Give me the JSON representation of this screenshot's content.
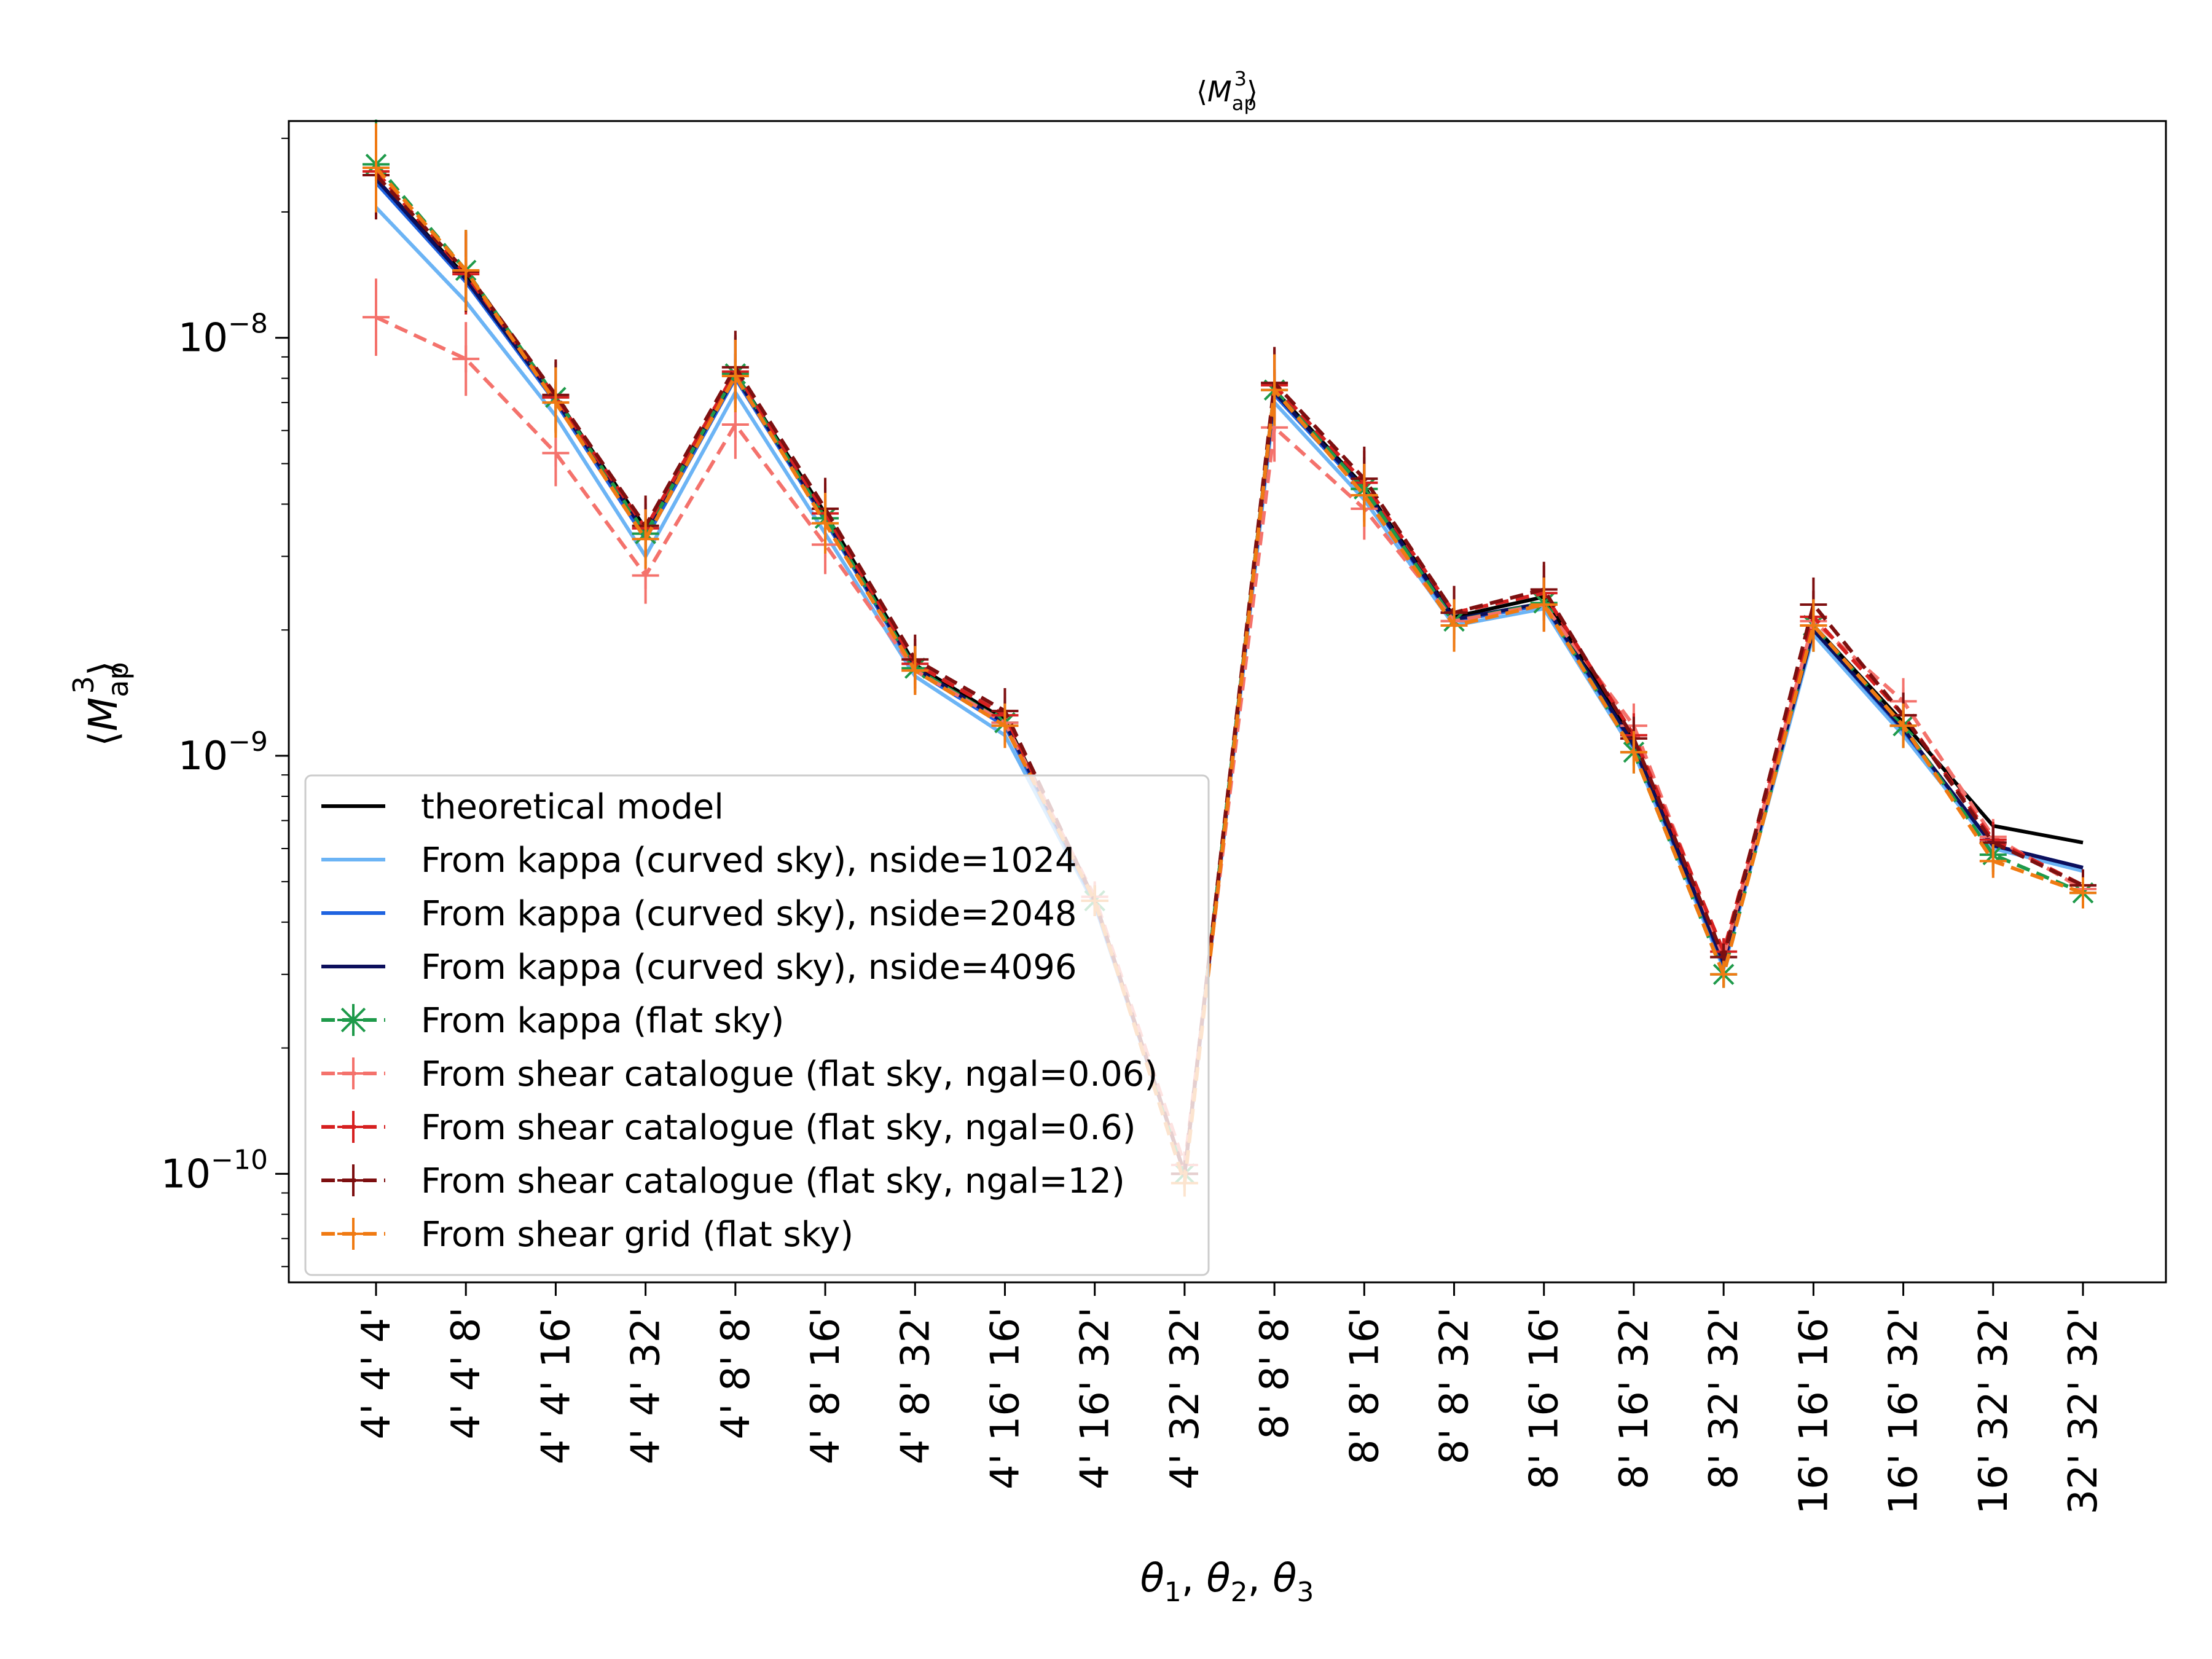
{
  "chart_data": {
    "type": "line",
    "title": "⟨M_ap^3⟩",
    "xlabel": "θ1, θ2, θ3",
    "ylabel": "⟨M_ap^3⟩",
    "yscale": "log",
    "ylim": [
      5.5e-11,
      3.3e-08
    ],
    "yticks": [
      {
        "value": 1e-08,
        "label": "10^-8"
      },
      {
        "value": 1e-09,
        "label": "10^-9"
      },
      {
        "value": 1e-10,
        "label": "10^-10"
      }
    ],
    "categories": [
      "4' 4' 4'",
      "4' 4' 8'",
      "4' 4' 16'",
      "4' 4' 32'",
      "4' 8' 8'",
      "4' 8' 16'",
      "4' 8' 32'",
      "4' 16' 16'",
      "4' 16' 32'",
      "4' 32' 32'",
      "8' 8' 8'",
      "8' 8' 16'",
      "8' 8' 32'",
      "8' 16' 16'",
      "8' 16' 32'",
      "8' 32' 32'",
      "16' 16' 16'",
      "16' 16' 32'",
      "16' 32' 32'",
      "32' 32' 32'"
    ],
    "legend_position": "lower-left",
    "grid": false,
    "series": [
      {
        "name": "theoretical model",
        "color": "#000000",
        "dashed": false,
        "marker": "none",
        "values": [
          2.4e-08,
          1.4e-08,
          7.2e-09,
          3.5e-09,
          8.2e-09,
          3.8e-09,
          1.65e-09,
          1.22e-09,
          4.5e-10,
          1e-10,
          7.5e-09,
          4.4e-09,
          2.15e-09,
          2.4e-09,
          1.08e-09,
          3.2e-10,
          2.05e-09,
          1.2e-09,
          6.8e-10,
          6.2e-10
        ]
      },
      {
        "name": "From kappa (curved sky), nside=1024",
        "color": "#6cb4f5",
        "dashed": false,
        "marker": "none",
        "values": [
          2.05e-08,
          1.22e-08,
          6.5e-09,
          3e-09,
          7.4e-09,
          3.4e-09,
          1.55e-09,
          1.12e-09,
          4.4e-10,
          1e-10,
          7e-09,
          4.1e-09,
          2.05e-09,
          2.25e-09,
          1.02e-09,
          3.1e-10,
          1.95e-09,
          1.12e-09,
          6e-10,
          5.3e-10
        ]
      },
      {
        "name": "From kappa (curved sky), nside=2048",
        "color": "#1f63e0",
        "dashed": false,
        "marker": "none",
        "values": [
          2.35e-08,
          1.36e-08,
          7e-09,
          3.3e-09,
          8e-09,
          3.65e-09,
          1.6e-09,
          1.18e-09,
          4.45e-10,
          1e-10,
          7.3e-09,
          4.3e-09,
          2.1e-09,
          2.3e-09,
          1.05e-09,
          3.15e-10,
          2e-09,
          1.15e-09,
          6.1e-10,
          5.4e-10
        ]
      },
      {
        "name": "From kappa (curved sky), nside=4096",
        "color": "#0c0f5c",
        "dashed": false,
        "marker": "none",
        "values": [
          2.4e-08,
          1.38e-08,
          7.1e-09,
          3.4e-09,
          8.1e-09,
          3.7e-09,
          1.62e-09,
          1.2e-09,
          4.5e-10,
          1e-10,
          7.4e-09,
          4.35e-09,
          2.12e-09,
          2.32e-09,
          1.06e-09,
          3.2e-10,
          2e-09,
          1.16e-09,
          6.1e-10,
          5.4e-10
        ]
      },
      {
        "name": "From kappa (flat sky)",
        "color": "#1e9a4a",
        "dashed": true,
        "marker": "star",
        "values": [
          2.6e-08,
          1.45e-08,
          7.2e-09,
          3.4e-09,
          8.2e-09,
          3.7e-09,
          1.62e-09,
          1.2e-09,
          4.5e-10,
          1e-10,
          7.5e-09,
          4.35e-09,
          2.1e-09,
          2.32e-09,
          1.02e-09,
          3e-10,
          2.05e-09,
          1.18e-09,
          5.8e-10,
          4.7e-10
        ]
      },
      {
        "name": "From shear catalogue (flat sky, ngal=0.06)",
        "color": "#f4726c",
        "dashed": true,
        "marker": "plus",
        "values": [
          1.12e-08,
          8.9e-09,
          5.3e-09,
          2.7e-09,
          6.2e-09,
          3.2e-09,
          1.6e-09,
          1.2e-09,
          4.6e-10,
          1.05e-10,
          6.1e-09,
          3.9e-09,
          2.1e-09,
          2.3e-09,
          1.18e-09,
          3.3e-10,
          2.1e-09,
          1.35e-09,
          6.4e-10,
          4.8e-10
        ]
      },
      {
        "name": "From shear catalogue (flat sky, ngal=0.6)",
        "color": "#d62020",
        "dashed": true,
        "marker": "plus",
        "values": [
          2.5e-08,
          1.42e-08,
          7.2e-09,
          3.5e-09,
          8.3e-09,
          3.8e-09,
          1.66e-09,
          1.25e-09,
          4.5e-10,
          1e-10,
          7.7e-09,
          4.5e-09,
          2.2e-09,
          2.45e-09,
          1.12e-09,
          3.4e-10,
          2.15e-09,
          1.25e-09,
          6.3e-10,
          4.9e-10
        ]
      },
      {
        "name": "From shear catalogue (flat sky, ngal=12)",
        "color": "#7d0f10",
        "dashed": true,
        "marker": "plus",
        "values": [
          2.45e-08,
          1.44e-08,
          7.3e-09,
          3.55e-09,
          8.5e-09,
          3.9e-09,
          1.7e-09,
          1.28e-09,
          4.5e-10,
          1e-10,
          7.8e-09,
          4.6e-09,
          2.2e-09,
          2.5e-09,
          1.1e-09,
          3.3e-10,
          2.3e-09,
          1.25e-09,
          6.2e-10,
          4.9e-10
        ]
      },
      {
        "name": "From shear grid (flat sky)",
        "color": "#f07a12",
        "dashed": true,
        "marker": "plus",
        "values": [
          2.55e-08,
          1.45e-08,
          7e-09,
          3.3e-09,
          8.1e-09,
          3.6e-09,
          1.6e-09,
          1.18e-09,
          4.5e-10,
          9.5e-11,
          7.5e-09,
          4.2e-09,
          2.05e-09,
          2.3e-09,
          1.02e-09,
          3e-10,
          2.05e-09,
          1.18e-09,
          5.6e-10,
          4.7e-10
        ]
      }
    ]
  }
}
